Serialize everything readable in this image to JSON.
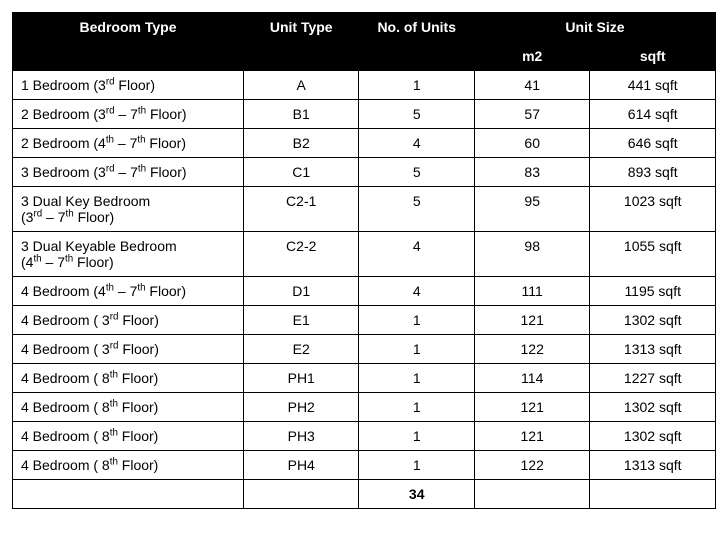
{
  "type": "table",
  "colors": {
    "header_bg": "#000000",
    "header_fg": "#ffffff",
    "body_bg": "#ffffff",
    "body_fg": "#000000",
    "border": "#000000"
  },
  "typography": {
    "font_family": "Arial, Helvetica, sans-serif",
    "body_fontsize_pt": 11,
    "header_fontsize_pt": 11,
    "header_weight": "bold"
  },
  "columns": {
    "bedroom_type": "Bedroom Type",
    "unit_type": "Unit Type",
    "no_of_units": "No. of Units",
    "unit_size": "Unit Size",
    "m2": "m2",
    "sqft": "sqft"
  },
  "rows": [
    {
      "bedroom_html": "1 Bedroom (3<sup>rd</sup> Floor)",
      "unit_type": "A",
      "units": "1",
      "m2": "41",
      "sqft": "441 sqft"
    },
    {
      "bedroom_html": "2 Bedroom (3<sup>rd</sup> – 7<sup>th</sup> Floor)",
      "unit_type": "B1",
      "units": "5",
      "m2": "57",
      "sqft": "614 sqft"
    },
    {
      "bedroom_html": "2 Bedroom (4<sup>th</sup> – 7<sup>th</sup> Floor)",
      "unit_type": "B2",
      "units": "4",
      "m2": "60",
      "sqft": "646 sqft"
    },
    {
      "bedroom_html": "3 Bedroom (3<sup>rd</sup> – 7<sup>th</sup> Floor)",
      "unit_type": "C1",
      "units": "5",
      "m2": "83",
      "sqft": "893 sqft"
    },
    {
      "bedroom_html": "3 Dual Key Bedroom<br>(3<sup>rd</sup> – 7<sup>th</sup> Floor)",
      "unit_type": "C2-1",
      "units": "5",
      "m2": "95",
      "sqft": "1023 sqft"
    },
    {
      "bedroom_html": "3 Dual Keyable Bedroom<br>(4<sup>th</sup> – 7<sup>th</sup> Floor)",
      "unit_type": "C2-2",
      "units": "4",
      "m2": "98",
      "sqft": "1055 sqft"
    },
    {
      "bedroom_html": "4 Bedroom (4<sup>th</sup> – 7<sup>th</sup> Floor)",
      "unit_type": "D1",
      "units": "4",
      "m2": "111",
      "sqft": "1195 sqft"
    },
    {
      "bedroom_html": "4 Bedroom ( 3<sup>rd</sup> Floor)",
      "unit_type": "E1",
      "units": "1",
      "m2": "121",
      "sqft": "1302 sqft"
    },
    {
      "bedroom_html": "4 Bedroom ( 3<sup>rd</sup> Floor)",
      "unit_type": "E2",
      "units": "1",
      "m2": "122",
      "sqft": "1313 sqft"
    },
    {
      "bedroom_html": "4 Bedroom ( 8<sup>th</sup> Floor)",
      "unit_type": "PH1",
      "units": "1",
      "m2": "114",
      "sqft": "1227 sqft"
    },
    {
      "bedroom_html": "4 Bedroom ( 8<sup>th</sup> Floor)",
      "unit_type": "PH2",
      "units": "1",
      "m2": "121",
      "sqft": "1302 sqft"
    },
    {
      "bedroom_html": "4 Bedroom ( 8<sup>th</sup> Floor)",
      "unit_type": "PH3",
      "units": "1",
      "m2": "121",
      "sqft": "1302 sqft"
    },
    {
      "bedroom_html": "4 Bedroom ( 8<sup>th</sup> Floor)",
      "unit_type": "PH4",
      "units": "1",
      "m2": "122",
      "sqft": "1313 sqft"
    }
  ],
  "total_units": "34"
}
